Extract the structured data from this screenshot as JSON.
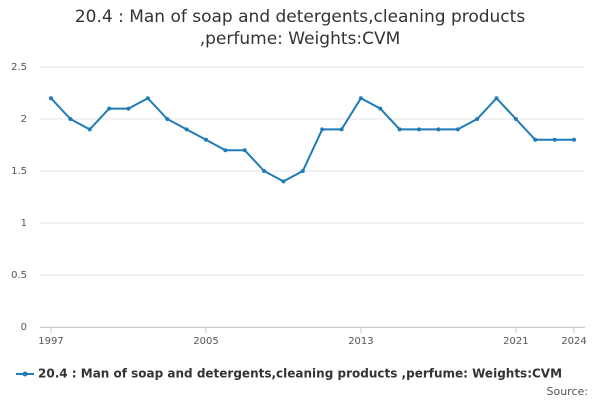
{
  "chart_data": {
    "type": "line",
    "title": "20.4 : Man of soap and detergents,cleaning products ,perfume: Weights:CVM",
    "x": [
      1997,
      1998,
      1999,
      2000,
      2001,
      2002,
      2003,
      2004,
      2005,
      2006,
      2007,
      2008,
      2009,
      2010,
      2011,
      2012,
      2013,
      2014,
      2015,
      2016,
      2017,
      2018,
      2019,
      2020,
      2021,
      2022,
      2023,
      2024
    ],
    "series": [
      {
        "name": "20.4 : Man of soap and detergents,cleaning products ,perfume: Weights:CVM",
        "color": "#1f7bb6",
        "values": [
          2.2,
          2.0,
          1.9,
          2.1,
          2.1,
          2.2,
          2.0,
          1.9,
          1.8,
          1.7,
          1.7,
          1.5,
          1.4,
          1.5,
          1.9,
          1.9,
          2.2,
          2.1,
          1.9,
          1.9,
          1.9,
          1.9,
          2.0,
          2.2,
          2.0,
          1.8,
          1.8,
          1.8
        ]
      }
    ],
    "xlim": [
      1997,
      2024
    ],
    "xticks": [
      1997,
      2005,
      2013,
      2021,
      2024
    ],
    "ylim": [
      0,
      2.5
    ],
    "yticks": [
      0,
      0.5,
      1,
      1.5,
      2,
      2.5
    ],
    "grid": true,
    "source": "Source:"
  }
}
